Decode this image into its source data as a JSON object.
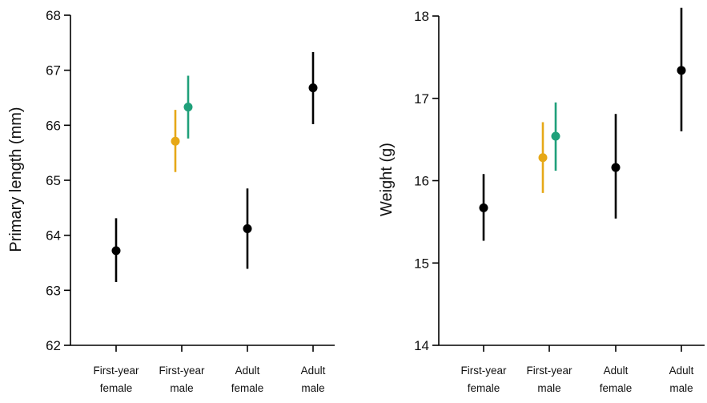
{
  "chart_data": [
    {
      "type": "scatter",
      "ylabel": "Primary length (mm)",
      "xlabel": "",
      "ylim": [
        62,
        68
      ],
      "yticks": [
        "62",
        "63",
        "64",
        "65",
        "66",
        "67",
        "68"
      ],
      "categories": [
        {
          "lines": [
            "First-year",
            "female"
          ]
        },
        {
          "lines": [
            "First-year",
            "male"
          ]
        },
        {
          "lines": [
            "Adult",
            "female"
          ]
        },
        {
          "lines": [
            "Adult",
            "male"
          ]
        }
      ],
      "grid": false,
      "points": [
        {
          "category": 0,
          "offset": 0,
          "y": 63.72,
          "lo": 63.15,
          "hi": 64.31,
          "color": "#000000"
        },
        {
          "category": 1,
          "offset": -1,
          "y": 65.71,
          "lo": 65.15,
          "hi": 66.28,
          "color": "#E6A817"
        },
        {
          "category": 1,
          "offset": 1,
          "y": 66.33,
          "lo": 65.76,
          "hi": 66.9,
          "color": "#1FA07A"
        },
        {
          "category": 2,
          "offset": 0,
          "y": 64.12,
          "lo": 63.39,
          "hi": 64.85,
          "color": "#000000"
        },
        {
          "category": 3,
          "offset": 0,
          "y": 66.68,
          "lo": 66.02,
          "hi": 67.33,
          "color": "#000000"
        }
      ]
    },
    {
      "type": "scatter",
      "ylabel": "Weight (g)",
      "xlabel": "",
      "ylim": [
        14,
        18
      ],
      "yticks": [
        "14",
        "15",
        "16",
        "17",
        "18"
      ],
      "categories": [
        {
          "lines": [
            "First-year",
            "female"
          ]
        },
        {
          "lines": [
            "First-year",
            "male"
          ]
        },
        {
          "lines": [
            "Adult",
            "female"
          ]
        },
        {
          "lines": [
            "Adult",
            "male"
          ]
        }
      ],
      "grid": false,
      "points": [
        {
          "category": 0,
          "offset": 0,
          "y": 15.67,
          "lo": 15.27,
          "hi": 16.08,
          "color": "#000000"
        },
        {
          "category": 1,
          "offset": -1,
          "y": 16.28,
          "lo": 15.85,
          "hi": 16.71,
          "color": "#E6A817"
        },
        {
          "category": 1,
          "offset": 1,
          "y": 16.54,
          "lo": 16.12,
          "hi": 16.95,
          "color": "#1FA07A"
        },
        {
          "category": 2,
          "offset": 0,
          "y": 16.16,
          "lo": 15.54,
          "hi": 16.81,
          "color": "#000000"
        },
        {
          "category": 3,
          "offset": 0,
          "y": 17.34,
          "lo": 16.6,
          "hi": 18.1,
          "color": "#000000"
        }
      ]
    }
  ]
}
